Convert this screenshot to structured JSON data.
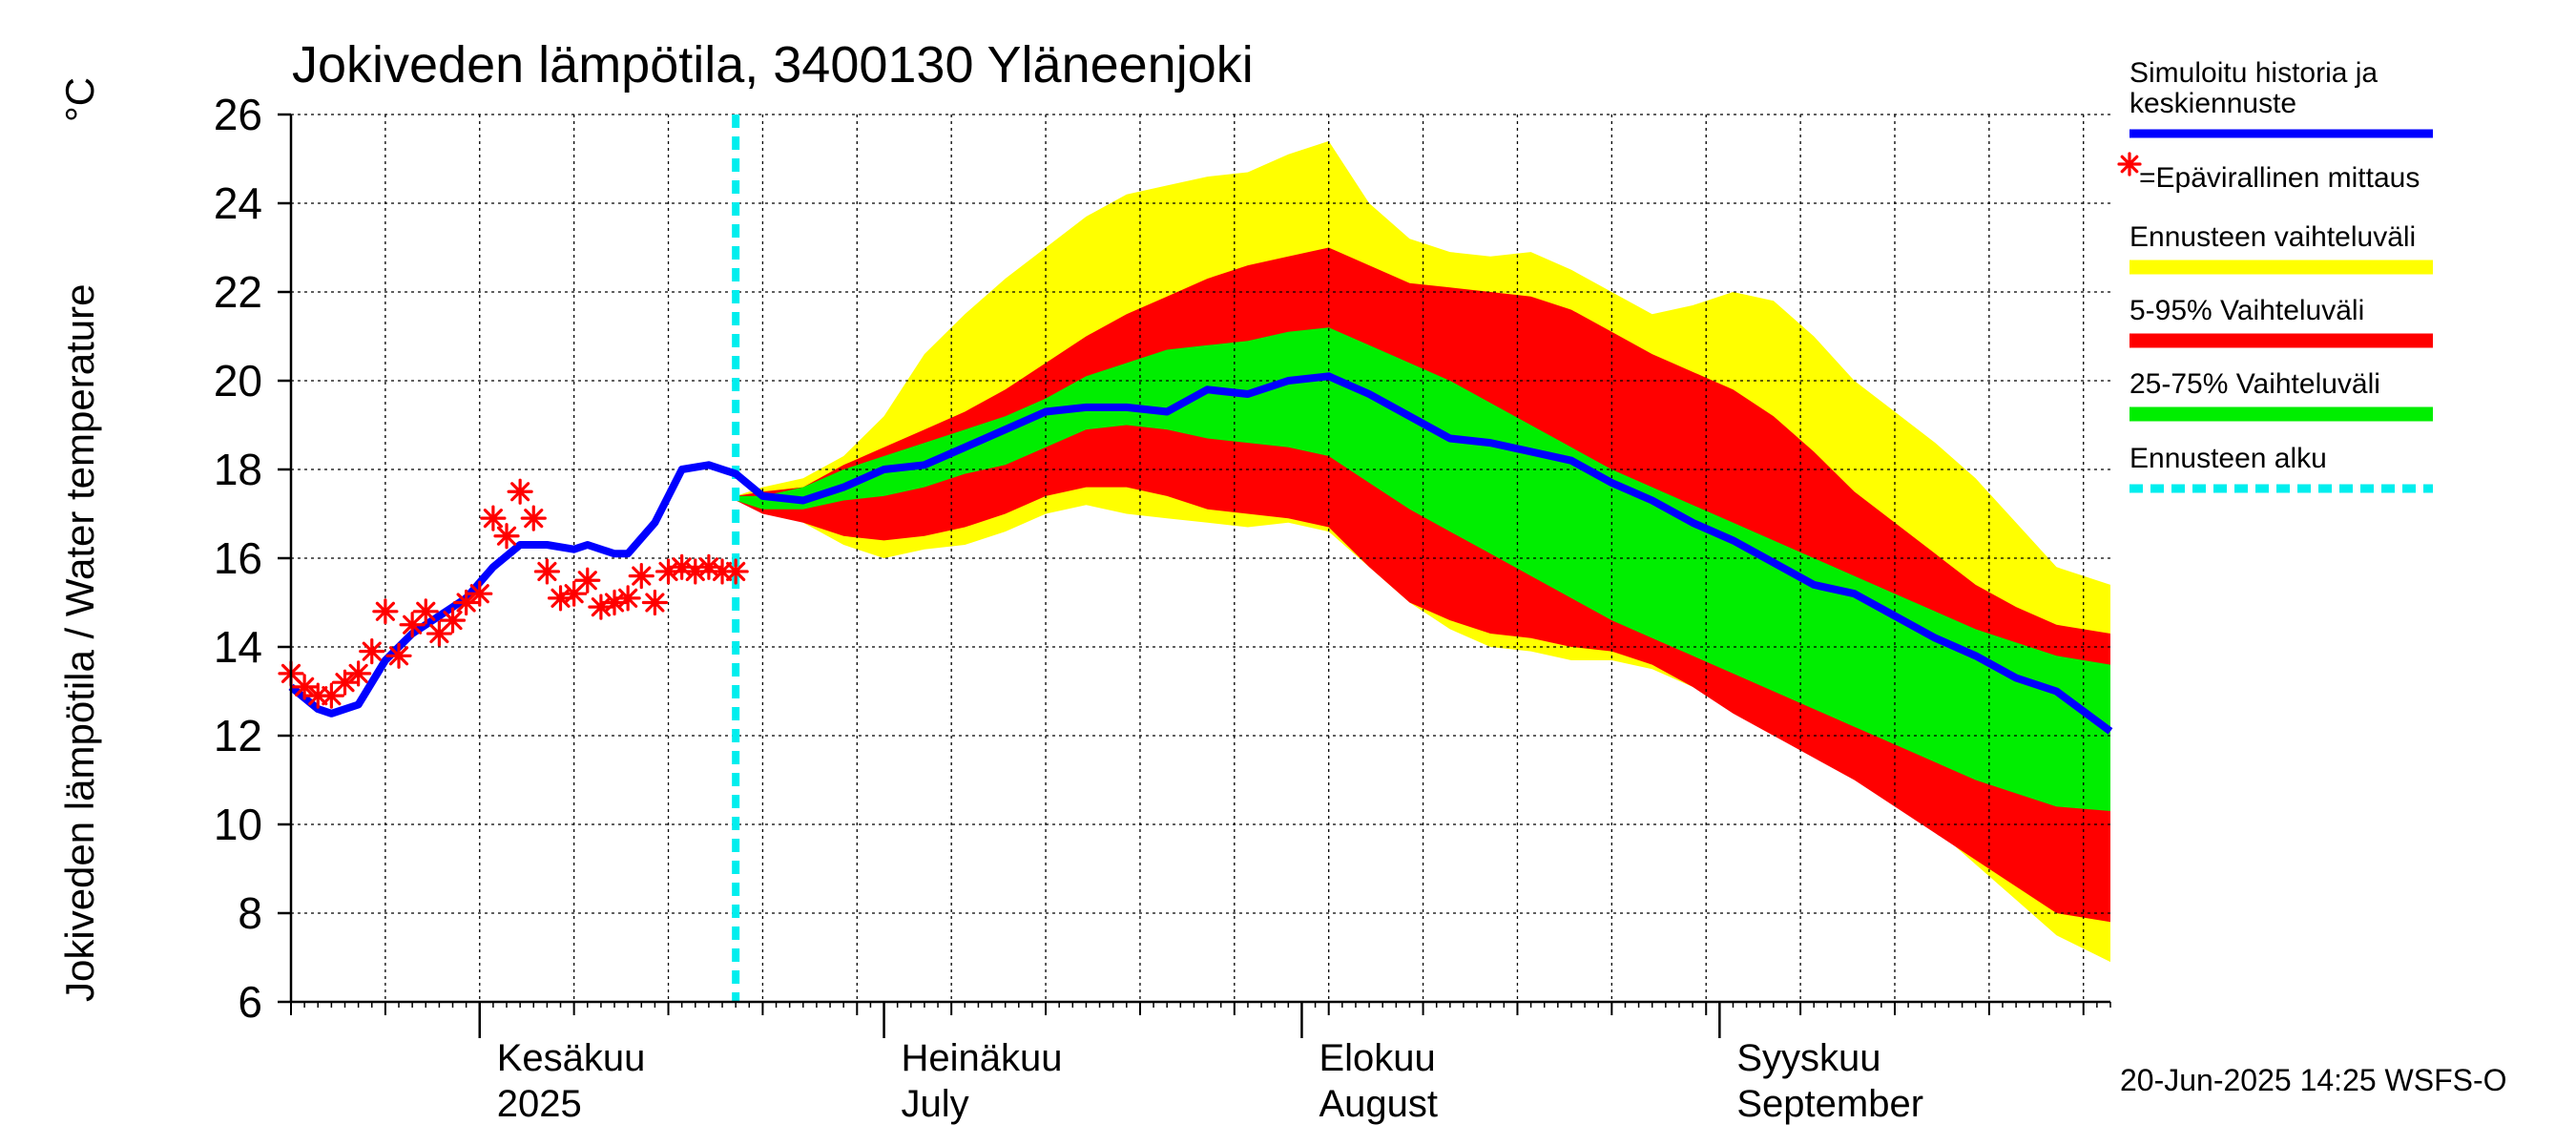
{
  "chart_data": {
    "type": "area",
    "title": "Jokiveden lämpötila, 3400130 Yläneenjoki",
    "ylabel": "Jokiveden lämpötila / Water temperature",
    "yunit": "°C",
    "ylim": [
      6,
      26
    ],
    "yticks": [
      6,
      8,
      10,
      12,
      14,
      16,
      18,
      20,
      22,
      24,
      26
    ],
    "xlim": [
      "2025-05-18",
      "2025-09-30"
    ],
    "grid": true,
    "forecast_start": "2025-06-20",
    "x_labels": [
      {
        "date": "2025-06-01",
        "fi": "Kesäkuu",
        "en": "2025"
      },
      {
        "date": "2025-07-01",
        "fi": "Heinäkuu",
        "en": "July"
      },
      {
        "date": "2025-08-01",
        "fi": "Elokuu",
        "en": "August"
      },
      {
        "date": "2025-09-01",
        "fi": "Syyskuu",
        "en": "September"
      }
    ],
    "legend": {
      "placement": "right",
      "items": [
        {
          "label_lines": [
            "Simuloitu historia ja",
            "keskiennuste"
          ],
          "color": "#0000ff",
          "kind": "line"
        },
        {
          "label_lines": [
            "=Epävirallinen mittaus"
          ],
          "color": "#ff0000",
          "kind": "marker"
        },
        {
          "label_lines": [
            "Ennusteen vaihteluväli"
          ],
          "color": "#ffff00",
          "kind": "band"
        },
        {
          "label_lines": [
            "5-95% Vaihteluväli"
          ],
          "color": "#ff0000",
          "kind": "band"
        },
        {
          "label_lines": [
            "25-75% Vaihteluväli"
          ],
          "color": "#00ee00",
          "kind": "band"
        },
        {
          "label_lines": [
            "Ennusteen alku"
          ],
          "color": "#00eeee",
          "kind": "dashed"
        }
      ]
    },
    "series": {
      "range_full": {
        "color": "#ffff00",
        "x": [
          "2025-06-20",
          "2025-06-22",
          "2025-06-25",
          "2025-06-28",
          "2025-07-01",
          "2025-07-04",
          "2025-07-07",
          "2025-07-10",
          "2025-07-13",
          "2025-07-16",
          "2025-07-19",
          "2025-07-22",
          "2025-07-25",
          "2025-07-28",
          "2025-07-31",
          "2025-08-03",
          "2025-08-06",
          "2025-08-09",
          "2025-08-12",
          "2025-08-15",
          "2025-08-18",
          "2025-08-21",
          "2025-08-24",
          "2025-08-27",
          "2025-08-30",
          "2025-09-02",
          "2025-09-05",
          "2025-09-08",
          "2025-09-11",
          "2025-09-14",
          "2025-09-17",
          "2025-09-20",
          "2025-09-23",
          "2025-09-26",
          "2025-09-30"
        ],
        "upper": [
          17.4,
          17.6,
          17.8,
          18.3,
          19.2,
          20.6,
          21.5,
          22.3,
          23.0,
          23.7,
          24.2,
          24.4,
          24.6,
          24.7,
          25.1,
          25.4,
          24.0,
          23.2,
          22.9,
          22.8,
          22.9,
          22.5,
          22.0,
          21.5,
          21.7,
          22.0,
          21.8,
          21.0,
          20.0,
          19.3,
          18.6,
          17.8,
          16.8,
          15.8,
          15.4
        ],
        "lower": [
          17.3,
          17.2,
          16.8,
          16.3,
          16.0,
          16.2,
          16.3,
          16.6,
          17.0,
          17.2,
          17.0,
          16.9,
          16.8,
          16.7,
          16.8,
          16.6,
          15.8,
          15.0,
          14.4,
          14.0,
          13.9,
          13.7,
          13.7,
          13.5,
          13.1,
          12.7,
          12.2,
          11.8,
          11.2,
          10.6,
          9.9,
          9.1,
          8.3,
          7.5,
          6.9
        ]
      },
      "range_5_95": {
        "color": "#ff0000",
        "x": [
          "2025-06-20",
          "2025-06-22",
          "2025-06-25",
          "2025-06-28",
          "2025-07-01",
          "2025-07-04",
          "2025-07-07",
          "2025-07-10",
          "2025-07-13",
          "2025-07-16",
          "2025-07-19",
          "2025-07-22",
          "2025-07-25",
          "2025-07-28",
          "2025-07-31",
          "2025-08-03",
          "2025-08-06",
          "2025-08-09",
          "2025-08-12",
          "2025-08-15",
          "2025-08-18",
          "2025-08-21",
          "2025-08-24",
          "2025-08-27",
          "2025-08-30",
          "2025-09-02",
          "2025-09-05",
          "2025-09-08",
          "2025-09-11",
          "2025-09-14",
          "2025-09-17",
          "2025-09-20",
          "2025-09-23",
          "2025-09-26",
          "2025-09-30"
        ],
        "upper": [
          17.4,
          17.5,
          17.6,
          18.1,
          18.5,
          18.9,
          19.3,
          19.8,
          20.4,
          21.0,
          21.5,
          21.9,
          22.3,
          22.6,
          22.8,
          23.0,
          22.6,
          22.2,
          22.1,
          22.0,
          21.9,
          21.6,
          21.1,
          20.6,
          20.2,
          19.8,
          19.2,
          18.4,
          17.5,
          16.8,
          16.1,
          15.4,
          14.9,
          14.5,
          14.3
        ],
        "lower": [
          17.3,
          17.0,
          16.8,
          16.5,
          16.4,
          16.5,
          16.7,
          17.0,
          17.4,
          17.6,
          17.6,
          17.4,
          17.1,
          17.0,
          16.9,
          16.7,
          15.8,
          15.0,
          14.6,
          14.3,
          14.2,
          14.0,
          13.9,
          13.6,
          13.1,
          12.5,
          12.0,
          11.5,
          11.0,
          10.4,
          9.8,
          9.2,
          8.6,
          8.0,
          7.8
        ]
      },
      "range_25_75": {
        "color": "#00ee00",
        "x": [
          "2025-06-20",
          "2025-06-22",
          "2025-06-25",
          "2025-06-28",
          "2025-07-01",
          "2025-07-04",
          "2025-07-07",
          "2025-07-10",
          "2025-07-13",
          "2025-07-16",
          "2025-07-19",
          "2025-07-22",
          "2025-07-25",
          "2025-07-28",
          "2025-07-31",
          "2025-08-03",
          "2025-08-06",
          "2025-08-09",
          "2025-08-12",
          "2025-08-15",
          "2025-08-18",
          "2025-08-21",
          "2025-08-24",
          "2025-08-27",
          "2025-08-30",
          "2025-09-02",
          "2025-09-05",
          "2025-09-08",
          "2025-09-11",
          "2025-09-14",
          "2025-09-17",
          "2025-09-20",
          "2025-09-23",
          "2025-09-26",
          "2025-09-30"
        ],
        "upper": [
          17.4,
          17.4,
          17.6,
          18.0,
          18.3,
          18.6,
          18.9,
          19.2,
          19.6,
          20.1,
          20.4,
          20.7,
          20.8,
          20.9,
          21.1,
          21.2,
          20.8,
          20.4,
          20.0,
          19.5,
          19.0,
          18.5,
          18.0,
          17.6,
          17.2,
          16.8,
          16.4,
          16.0,
          15.6,
          15.2,
          14.8,
          14.4,
          14.1,
          13.8,
          13.6
        ],
        "lower": [
          17.3,
          17.1,
          17.1,
          17.3,
          17.4,
          17.6,
          17.9,
          18.1,
          18.5,
          18.9,
          19.0,
          18.9,
          18.7,
          18.6,
          18.5,
          18.3,
          17.7,
          17.1,
          16.6,
          16.1,
          15.6,
          15.1,
          14.6,
          14.2,
          13.8,
          13.4,
          13.0,
          12.6,
          12.2,
          11.8,
          11.4,
          11.0,
          10.7,
          10.4,
          10.3
        ]
      },
      "median": {
        "color": "#0000ff",
        "x": [
          "2025-05-18",
          "2025-05-20",
          "2025-05-21",
          "2025-05-23",
          "2025-05-25",
          "2025-05-27",
          "2025-05-29",
          "2025-05-31",
          "2025-06-02",
          "2025-06-04",
          "2025-06-06",
          "2025-06-08",
          "2025-06-09",
          "2025-06-11",
          "2025-06-12",
          "2025-06-14",
          "2025-06-16",
          "2025-06-18",
          "2025-06-20",
          "2025-06-22",
          "2025-06-25",
          "2025-06-28",
          "2025-07-01",
          "2025-07-04",
          "2025-07-07",
          "2025-07-10",
          "2025-07-13",
          "2025-07-16",
          "2025-07-19",
          "2025-07-22",
          "2025-07-25",
          "2025-07-28",
          "2025-07-31",
          "2025-08-03",
          "2025-08-06",
          "2025-08-09",
          "2025-08-12",
          "2025-08-15",
          "2025-08-18",
          "2025-08-21",
          "2025-08-24",
          "2025-08-27",
          "2025-08-30",
          "2025-09-02",
          "2025-09-05",
          "2025-09-08",
          "2025-09-11",
          "2025-09-14",
          "2025-09-17",
          "2025-09-20",
          "2025-09-23",
          "2025-09-26",
          "2025-09-30"
        ],
        "y": [
          13.1,
          12.6,
          12.5,
          12.7,
          13.7,
          14.3,
          14.7,
          15.1,
          15.8,
          16.3,
          16.3,
          16.2,
          16.3,
          16.1,
          16.1,
          16.8,
          18.0,
          18.1,
          17.9,
          17.4,
          17.3,
          17.6,
          18.0,
          18.1,
          18.5,
          18.9,
          19.3,
          19.4,
          19.4,
          19.3,
          19.8,
          19.7,
          20.0,
          20.1,
          19.7,
          19.2,
          18.7,
          18.6,
          18.4,
          18.2,
          17.7,
          17.3,
          16.8,
          16.4,
          15.9,
          15.4,
          15.2,
          14.7,
          14.2,
          13.8,
          13.3,
          13.0,
          12.1
        ]
      },
      "measurements": {
        "color": "#ff0000",
        "x": [
          "2025-05-18",
          "2025-05-19",
          "2025-05-20",
          "2025-05-21",
          "2025-05-22",
          "2025-05-23",
          "2025-05-24",
          "2025-05-25",
          "2025-05-26",
          "2025-05-27",
          "2025-05-28",
          "2025-05-29",
          "2025-05-30",
          "2025-05-31",
          "2025-06-01",
          "2025-06-02",
          "2025-06-03",
          "2025-06-04",
          "2025-06-05",
          "2025-06-06",
          "2025-06-07",
          "2025-06-08",
          "2025-06-09",
          "2025-06-10",
          "2025-06-11",
          "2025-06-12",
          "2025-06-13",
          "2025-06-14",
          "2025-06-15",
          "2025-06-16",
          "2025-06-17",
          "2025-06-18",
          "2025-06-19",
          "2025-06-20"
        ],
        "y": [
          13.4,
          13.1,
          12.9,
          12.9,
          13.2,
          13.4,
          13.9,
          14.8,
          13.8,
          14.5,
          14.8,
          14.3,
          14.6,
          15.0,
          15.2,
          16.9,
          16.5,
          17.5,
          16.9,
          15.7,
          15.1,
          15.2,
          15.5,
          14.9,
          15.0,
          15.1,
          15.6,
          15.0,
          15.7,
          15.8,
          15.7,
          15.8,
          15.7,
          15.7
        ]
      }
    }
  },
  "footer": {
    "timestamp": "20-Jun-2025 14:25 WSFS-O"
  }
}
